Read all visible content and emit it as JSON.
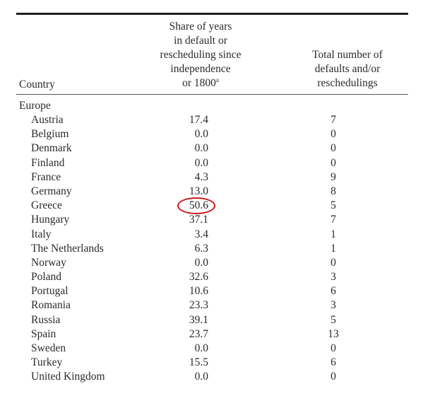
{
  "header": {
    "country": "Country",
    "share_lines": [
      "Share of years",
      "in default or",
      "rescheduling since",
      "independence",
      "or 1800"
    ],
    "share_footnote": "a",
    "total_lines": [
      "Total number of",
      "defaults and/or",
      "reschedulings"
    ]
  },
  "region": "Europe",
  "rows": [
    {
      "country": "Austria",
      "share": "17.4",
      "total": "7"
    },
    {
      "country": "Belgium",
      "share": "0.0",
      "total": "0"
    },
    {
      "country": "Denmark",
      "share": "0.0",
      "total": "0"
    },
    {
      "country": "Finland",
      "share": "0.0",
      "total": "0"
    },
    {
      "country": "France",
      "share": "4.3",
      "total": "9"
    },
    {
      "country": "Germany",
      "share": "13.0",
      "total": "8"
    },
    {
      "country": "Greece",
      "share": "50.6",
      "total": "5",
      "highlighted": true
    },
    {
      "country": "Hungary",
      "share": "37.1",
      "total": "7"
    },
    {
      "country": "Italy",
      "share": "3.4",
      "total": "1"
    },
    {
      "country": "The Netherlands",
      "share": "6.3",
      "total": "1"
    },
    {
      "country": "Norway",
      "share": "0.0",
      "total": "0"
    },
    {
      "country": "Poland",
      "share": "32.6",
      "total": "3"
    },
    {
      "country": "Portugal",
      "share": "10.6",
      "total": "6"
    },
    {
      "country": "Romania",
      "share": "23.3",
      "total": "3"
    },
    {
      "country": "Russia",
      "share": "39.1",
      "total": "5"
    },
    {
      "country": "Spain",
      "share": "23.7",
      "total": "13"
    },
    {
      "country": "Sweden",
      "share": "0.0",
      "total": "0"
    },
    {
      "country": "Turkey",
      "share": "15.5",
      "total": "6"
    },
    {
      "country": "United Kingdom",
      "share": "0.0",
      "total": "0"
    }
  ],
  "highlight_color": "#d01818"
}
